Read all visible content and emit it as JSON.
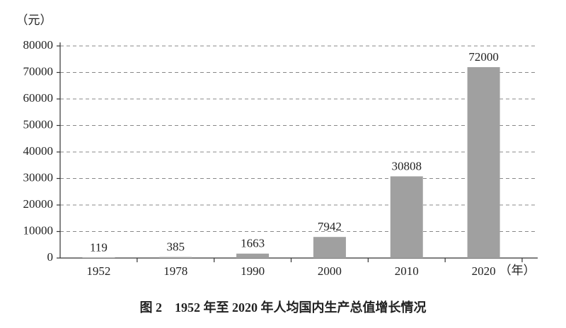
{
  "chart_data": {
    "type": "bar",
    "title": "图 2　1952 年至 2020 年人均国内生产总值增长情况",
    "y_label": "（元）",
    "x_label": "（年）",
    "categories": [
      "1952",
      "1978",
      "1990",
      "2000",
      "2010",
      "2020"
    ],
    "values": [
      119,
      385,
      1663,
      7942,
      30808,
      72000
    ],
    "color": "#a0a0a0",
    "ylim": [
      0,
      80000
    ],
    "yticks": [
      0,
      10000,
      20000,
      30000,
      40000,
      50000,
      60000,
      70000,
      80000
    ],
    "grid": true
  }
}
